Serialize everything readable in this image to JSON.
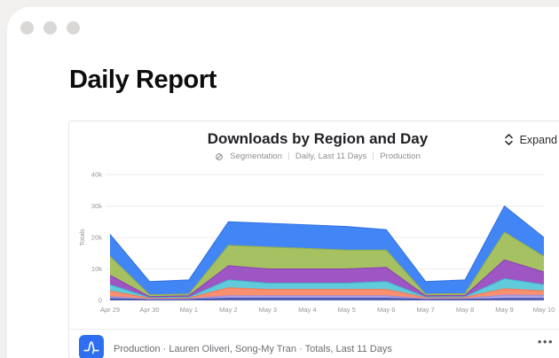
{
  "window": {
    "title": "Daily Report"
  },
  "card": {
    "title": "Downloads by Region and Day",
    "meta": {
      "segmentation": "Segmentation",
      "range": "Daily, Last 11 Days",
      "env": "Production"
    },
    "expand_label": "Expand"
  },
  "chart_data": {
    "type": "area",
    "stacked": true,
    "title": "Downloads by Region and Day",
    "xlabel": "",
    "ylabel": "Totals",
    "ylim": [
      0,
      40000
    ],
    "y_ticks": [
      "0",
      "10k",
      "20k",
      "30k",
      "40k"
    ],
    "y_tick_values": [
      0,
      10000,
      20000,
      30000,
      40000
    ],
    "grid": true,
    "legend": false,
    "categories": [
      "Apr 29",
      "Apr 30",
      "May 1",
      "May 2",
      "May 3",
      "May 4",
      "May 5",
      "May 6",
      "May 7",
      "May 8",
      "May 9",
      "May 10"
    ],
    "series": [
      {
        "name": "navy",
        "color": "#5564b8",
        "stroke": "#3e4a9e",
        "values": [
          600,
          200,
          300,
          700,
          700,
          700,
          700,
          700,
          300,
          300,
          600,
          600
        ]
      },
      {
        "name": "lavender",
        "color": "#b0a3e8",
        "stroke": "#9b8cdb",
        "values": [
          600,
          200,
          200,
          800,
          800,
          800,
          800,
          800,
          200,
          300,
          1100,
          1000
        ]
      },
      {
        "name": "salmon",
        "color": "#f9906f",
        "stroke": "#f07a56",
        "values": [
          1800,
          300,
          300,
          2500,
          2000,
          2000,
          2000,
          2000,
          400,
          400,
          2000,
          1400
        ]
      },
      {
        "name": "teal",
        "color": "#62cbdb",
        "stroke": "#3fb6c9",
        "values": [
          2000,
          200,
          200,
          2500,
          2000,
          2000,
          2000,
          2500,
          200,
          200,
          3200,
          2000
        ]
      },
      {
        "name": "purple",
        "color": "#9d56c4",
        "stroke": "#8a3fb5",
        "values": [
          3000,
          300,
          500,
          4500,
          4500,
          4500,
          4500,
          4500,
          400,
          400,
          6000,
          4000
        ]
      },
      {
        "name": "olive",
        "color": "#a6c161",
        "stroke": "#93b04a",
        "values": [
          6000,
          600,
          500,
          6500,
          7000,
          6500,
          6000,
          5500,
          500,
          600,
          8800,
          5000
        ]
      },
      {
        "name": "blue",
        "color": "#4285f4",
        "stroke": "#2f6fe0",
        "values": [
          7000,
          4200,
          4500,
          7500,
          7500,
          7500,
          7500,
          6500,
          4000,
          4300,
          8300,
          6000
        ]
      }
    ]
  },
  "footer": {
    "source_text": "Production · Lauren Oliveri, Song-My Tran · Totals, Last 11 Days",
    "menu": "•••"
  },
  "colors": {
    "accent_blue": "#2d6ff0",
    "page_bg": "#f1f0ee",
    "grid_line": "#ededf0",
    "axis_text": "#97979c"
  }
}
